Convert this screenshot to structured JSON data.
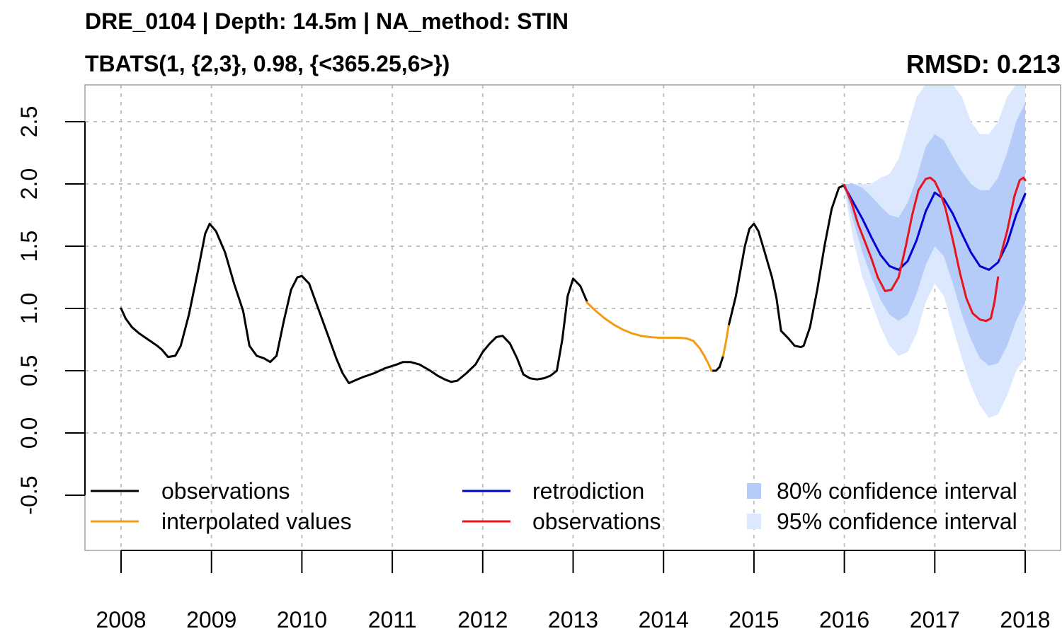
{
  "title": "DRE_0104 | Depth: 14.5m | NA_method: STIN",
  "subtitle": "TBATS(1, {2,3}, 0.98, {<365.25,6>})",
  "rmsd_label": "RMSD: 0.213",
  "colors": {
    "observations": "#000000",
    "interpolated": "#f39c12",
    "retrodiction": "#0000d6",
    "observations_test": "#e8131b",
    "ci80": "#b5ccf8",
    "ci95": "#dce8fd",
    "grid": "#c0c0c0"
  },
  "chart_data": {
    "type": "line",
    "title": "",
    "xlabel": "",
    "ylabel": "",
    "xlim": [
      2008,
      2018
    ],
    "ylim": [
      -0.5,
      2.5
    ],
    "x_ticks": [
      "2008",
      "2009",
      "2010",
      "2011",
      "2012",
      "2013",
      "2014",
      "2015",
      "2016",
      "2017",
      "2018"
    ],
    "y_ticks": [
      "-0.5",
      "0.0",
      "0.5",
      "1.0",
      "1.5",
      "2.0",
      "2.5"
    ],
    "grid": true,
    "legend": {
      "placement": "bottom",
      "entries": [
        {
          "label": "observations",
          "key": "observations"
        },
        {
          "label": "interpolated values",
          "key": "interpolated"
        },
        {
          "label": "retrodiction",
          "key": "retrodiction"
        },
        {
          "label": "observations",
          "key": "observations_test"
        },
        {
          "label": "80% confidence interval",
          "key": "ci80"
        },
        {
          "label": "95% confidence interval",
          "key": "ci95"
        }
      ]
    },
    "series": [
      {
        "name": "observations",
        "key": "observations",
        "x": [
          2008.0,
          2008.05,
          2008.12,
          2008.2,
          2008.3,
          2008.4,
          2008.45,
          2008.52,
          2008.6,
          2008.66,
          2008.75,
          2008.85,
          2008.93,
          2008.98,
          2009.05,
          2009.15,
          2009.25,
          2009.35,
          2009.42,
          2009.5,
          2009.58,
          2009.65,
          2009.72,
          2009.8,
          2009.88,
          2009.95,
          2010.0,
          2010.08,
          2010.18,
          2010.28,
          2010.38,
          2010.45,
          2010.52,
          2010.58,
          2010.68,
          2010.8,
          2010.92,
          2011.05,
          2011.12,
          2011.2,
          2011.3,
          2011.42,
          2011.5,
          2011.58,
          2011.65,
          2011.72,
          2011.82,
          2011.92,
          2012.0,
          2012.08,
          2012.15,
          2012.22,
          2012.3,
          2012.38,
          2012.45,
          2012.52,
          2012.6,
          2012.68,
          2012.75,
          2012.82,
          2012.88,
          2012.94,
          2013.0,
          2013.08,
          2013.15
        ],
        "y": [
          1.0,
          0.92,
          0.85,
          0.8,
          0.75,
          0.7,
          0.67,
          0.61,
          0.62,
          0.7,
          0.95,
          1.3,
          1.6,
          1.68,
          1.62,
          1.45,
          1.2,
          0.98,
          0.7,
          0.62,
          0.6,
          0.57,
          0.62,
          0.9,
          1.15,
          1.25,
          1.26,
          1.2,
          1.0,
          0.8,
          0.6,
          0.48,
          0.4,
          0.42,
          0.45,
          0.48,
          0.52,
          0.55,
          0.57,
          0.57,
          0.55,
          0.5,
          0.46,
          0.43,
          0.41,
          0.42,
          0.48,
          0.55,
          0.65,
          0.72,
          0.77,
          0.78,
          0.72,
          0.6,
          0.47,
          0.44,
          0.43,
          0.44,
          0.46,
          0.5,
          0.75,
          1.1,
          1.24,
          1.18,
          1.06
        ]
      },
      {
        "name": "observations",
        "key": "observations",
        "x": [
          2014.53,
          2014.58,
          2014.62,
          2014.66
        ],
        "y": [
          0.5,
          0.5,
          0.53,
          0.62
        ]
      },
      {
        "name": "observations",
        "key": "observations",
        "x": [
          2014.72,
          2014.8,
          2014.85,
          2014.9,
          2014.95,
          2015.0,
          2015.05,
          2015.12,
          2015.2,
          2015.25,
          2015.3,
          2015.38,
          2015.45,
          2015.52,
          2015.55,
          2015.62,
          2015.7,
          2015.78,
          2015.86,
          2015.94,
          2016.0
        ],
        "y": [
          0.86,
          1.1,
          1.3,
          1.5,
          1.64,
          1.68,
          1.62,
          1.45,
          1.25,
          1.08,
          0.82,
          0.76,
          0.7,
          0.69,
          0.7,
          0.85,
          1.15,
          1.5,
          1.8,
          1.97,
          1.99
        ]
      },
      {
        "name": "interpolated values",
        "key": "interpolated",
        "x": [
          2013.15,
          2013.25,
          2013.35,
          2013.45,
          2013.55,
          2013.65,
          2013.75,
          2013.85,
          2013.95,
          2014.05,
          2014.15,
          2014.25,
          2014.33,
          2014.4,
          2014.45,
          2014.5,
          2014.53
        ],
        "y": [
          1.05,
          0.98,
          0.92,
          0.87,
          0.83,
          0.8,
          0.78,
          0.77,
          0.765,
          0.765,
          0.765,
          0.76,
          0.74,
          0.68,
          0.62,
          0.55,
          0.5
        ]
      },
      {
        "name": "interpolated values",
        "key": "interpolated",
        "x": [
          2014.66,
          2014.69,
          2014.72
        ],
        "y": [
          0.62,
          0.73,
          0.86
        ]
      },
      {
        "name": "retrodiction",
        "key": "retrodiction",
        "x": [
          2016.0,
          2016.1,
          2016.2,
          2016.3,
          2016.4,
          2016.5,
          2016.6,
          2016.7,
          2016.8,
          2016.9,
          2017.0,
          2017.1,
          2017.2,
          2017.3,
          2017.4,
          2017.5,
          2017.6,
          2017.7,
          2017.8,
          2017.9,
          2018.0
        ],
        "y": [
          1.98,
          1.85,
          1.72,
          1.57,
          1.43,
          1.34,
          1.31,
          1.38,
          1.55,
          1.78,
          1.93,
          1.88,
          1.76,
          1.6,
          1.45,
          1.34,
          1.31,
          1.37,
          1.52,
          1.75,
          1.92
        ]
      },
      {
        "name": "observations",
        "key": "observations_test",
        "x": [
          2016.0,
          2016.08,
          2016.15,
          2016.22,
          2016.3,
          2016.37,
          2016.45,
          2016.52,
          2016.6,
          2016.68,
          2016.75,
          2016.82,
          2016.9,
          2016.95,
          2017.0,
          2017.06,
          2017.12,
          2017.2,
          2017.28,
          2017.35,
          2017.42,
          2017.5,
          2017.57,
          2017.62,
          2017.66,
          2017.7
        ],
        "y": [
          1.99,
          1.85,
          1.68,
          1.55,
          1.4,
          1.25,
          1.14,
          1.15,
          1.25,
          1.5,
          1.75,
          1.95,
          2.04,
          2.05,
          2.02,
          1.93,
          1.8,
          1.55,
          1.28,
          1.08,
          0.96,
          0.91,
          0.9,
          0.92,
          1.05,
          1.25
        ]
      },
      {
        "name": "observations",
        "key": "observations_test",
        "x": [
          2017.72,
          2017.8,
          2017.88,
          2017.94,
          2017.98,
          2018.0
        ],
        "y": [
          1.4,
          1.62,
          1.9,
          2.03,
          2.05,
          2.03
        ]
      }
    ],
    "bands": [
      {
        "name": "95% confidence interval",
        "key": "ci95",
        "x": [
          2016.0,
          2016.1,
          2016.2,
          2016.3,
          2016.4,
          2016.5,
          2016.6,
          2016.7,
          2016.8,
          2016.9,
          2017.0,
          2017.1,
          2017.2,
          2017.3,
          2017.4,
          2017.5,
          2017.6,
          2017.7,
          2017.8,
          2017.9,
          2018.0
        ],
        "lower": [
          1.95,
          1.55,
          1.25,
          1.05,
          0.85,
          0.7,
          0.62,
          0.65,
          0.8,
          1.05,
          1.2,
          1.1,
          0.85,
          0.6,
          0.38,
          0.22,
          0.12,
          0.15,
          0.3,
          0.5,
          0.6
        ],
        "upper": [
          2.0,
          2.0,
          2.0,
          2.0,
          2.05,
          2.08,
          2.2,
          2.45,
          2.7,
          2.8,
          2.8,
          2.8,
          2.8,
          2.7,
          2.5,
          2.4,
          2.4,
          2.5,
          2.7,
          2.8,
          2.8
        ]
      },
      {
        "name": "80% confidence interval",
        "key": "ci80",
        "x": [
          2016.0,
          2016.1,
          2016.2,
          2016.3,
          2016.4,
          2016.5,
          2016.6,
          2016.7,
          2016.8,
          2016.9,
          2017.0,
          2017.1,
          2017.2,
          2017.3,
          2017.4,
          2017.5,
          2017.6,
          2017.7,
          2017.8,
          2017.9,
          2018.0
        ],
        "lower": [
          1.97,
          1.7,
          1.45,
          1.25,
          1.07,
          0.95,
          0.9,
          0.95,
          1.12,
          1.35,
          1.5,
          1.42,
          1.2,
          0.95,
          0.75,
          0.6,
          0.54,
          0.56,
          0.7,
          0.9,
          1.05
        ],
        "upper": [
          2.0,
          2.0,
          1.97,
          1.9,
          1.82,
          1.75,
          1.73,
          1.85,
          2.05,
          2.3,
          2.4,
          2.35,
          2.22,
          2.1,
          2.0,
          1.95,
          1.95,
          2.05,
          2.25,
          2.5,
          2.65
        ]
      }
    ]
  }
}
